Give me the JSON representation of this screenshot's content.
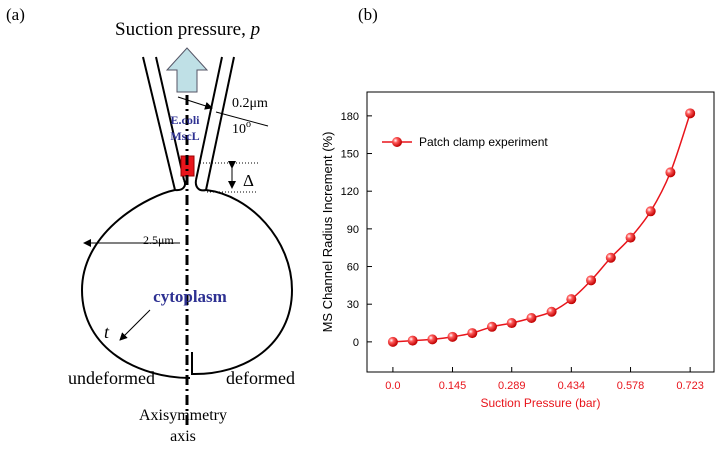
{
  "diagram": {
    "panel_label": "(a)",
    "title": "Suction pressure, ",
    "title_var": "p",
    "thickness": "0.2μm",
    "angle": "10",
    "angle_unit": "o",
    "channel_line1": "E.coli",
    "channel_line2": "MscL",
    "delta": "Δ",
    "radius": "2.5μm",
    "cytoplasm": "cytoplasm",
    "t": "t",
    "undeformed": "undeformed",
    "deformed": "deformed",
    "axis_line1": "Axisymmetry",
    "axis_line2": "axis"
  },
  "chart_data": {
    "type": "line",
    "panel_label": "(b)",
    "x_label": "Suction Pressure (bar)",
    "y_label": "MS Channel Radius Increment (%)",
    "x": [
      0,
      0.048,
      0.096,
      0.145,
      0.193,
      0.241,
      0.289,
      0.337,
      0.386,
      0.434,
      0.482,
      0.53,
      0.578,
      0.627,
      0.675,
      0.723
    ],
    "series": [
      {
        "name": "Patch clamp experiment",
        "color": "#e8141b",
        "values": [
          0,
          1,
          2,
          4,
          7,
          12,
          15,
          19,
          24,
          34,
          49,
          67,
          83,
          104,
          135,
          182
        ]
      }
    ],
    "xlim": [
      -0.063,
      0.781
    ],
    "ylim": [
      -24,
      199
    ],
    "xticks": [
      {
        "value": 0,
        "label": "0.0"
      },
      0.145,
      0.289,
      0.434,
      0.578,
      0.723
    ],
    "yticks": [
      0,
      30,
      60,
      90,
      120,
      150,
      180
    ],
    "legend": "upper-left",
    "grid": false
  }
}
